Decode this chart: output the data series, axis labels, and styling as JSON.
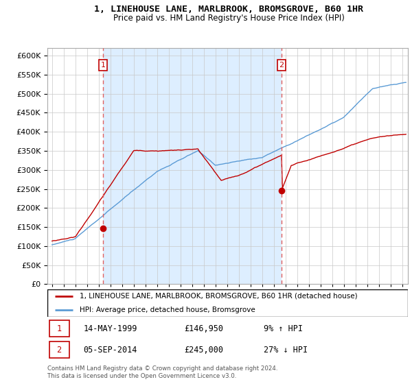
{
  "title": "1, LINEHOUSE LANE, MARLBROOK, BROMSGROVE, B60 1HR",
  "subtitle": "Price paid vs. HM Land Registry's House Price Index (HPI)",
  "legend_line1": "1, LINEHOUSE LANE, MARLBROOK, BROMSGROVE, B60 1HR (detached house)",
  "legend_line2": "HPI: Average price, detached house, Bromsgrove",
  "annotation1_label": "1",
  "annotation1_date": "14-MAY-1999",
  "annotation1_price": "£146,950",
  "annotation1_hpi": "9% ↑ HPI",
  "annotation2_label": "2",
  "annotation2_date": "05-SEP-2014",
  "annotation2_price": "£245,000",
  "annotation2_hpi": "27% ↓ HPI",
  "footnote": "Contains HM Land Registry data © Crown copyright and database right 2024.\nThis data is licensed under the Open Government Licence v3.0.",
  "hpi_color": "#5b9bd5",
  "price_color": "#c00000",
  "vline_color": "#e06060",
  "shade_color": "#ddeeff",
  "background_color": "#ffffff",
  "grid_color": "#c8c8c8",
  "ylim": [
    0,
    620000
  ],
  "yticks": [
    0,
    50000,
    100000,
    150000,
    200000,
    250000,
    300000,
    350000,
    400000,
    450000,
    500000,
    550000,
    600000
  ],
  "marker1_x": 1999.37,
  "marker1_y": 146950,
  "marker2_x": 2014.67,
  "marker2_y": 245000,
  "xlim_left": 1994.6,
  "xlim_right": 2025.5
}
